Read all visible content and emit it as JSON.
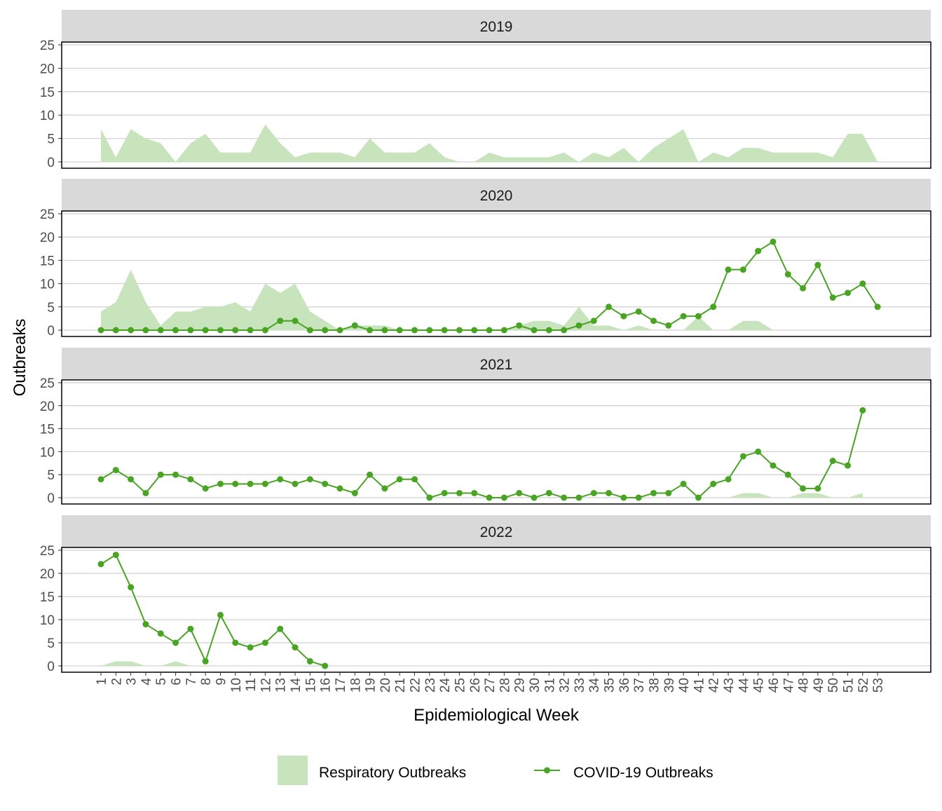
{
  "chart_data": {
    "type": "area",
    "xlabel": "Epidemiological Week",
    "ylabel": "Outbreaks",
    "ylim": [
      0,
      25
    ],
    "yticks": [
      0,
      5,
      10,
      15,
      20,
      25
    ],
    "x": [
      1,
      2,
      3,
      4,
      5,
      6,
      7,
      8,
      9,
      10,
      11,
      12,
      13,
      14,
      15,
      16,
      17,
      18,
      19,
      20,
      21,
      22,
      23,
      24,
      25,
      26,
      27,
      28,
      29,
      30,
      31,
      32,
      33,
      34,
      35,
      36,
      37,
      38,
      39,
      40,
      41,
      42,
      43,
      44,
      45,
      46,
      47,
      48,
      49,
      50,
      51,
      52,
      53
    ],
    "grid": "horizontal",
    "legend_position": "bottom",
    "colors": {
      "respiratory_fill": "#c7e4bd",
      "covid_line": "#4aa424",
      "strip_bg": "#d9d9d9",
      "grid": "#d2d2d2"
    },
    "series_names": {
      "respiratory": "Respiratory Outbreaks",
      "covid": "COVID-19 Outbreaks"
    },
    "panels": [
      {
        "label": "2019",
        "respiratory": [
          7,
          1,
          7,
          5,
          4,
          0,
          4,
          6,
          2,
          2,
          2,
          8,
          4,
          1,
          2,
          2,
          2,
          1,
          5,
          2,
          2,
          2,
          4,
          1,
          0,
          0,
          2,
          1,
          1,
          1,
          1,
          2,
          0,
          2,
          1,
          3,
          0,
          3,
          5,
          7,
          0,
          2,
          1,
          3,
          3,
          2,
          2,
          2,
          2,
          1,
          6,
          6,
          0
        ],
        "covid": []
      },
      {
        "label": "2020",
        "respiratory": [
          4,
          6,
          13,
          6,
          1,
          4,
          4,
          5,
          5,
          6,
          4,
          10,
          8,
          10,
          4,
          2,
          0,
          1,
          1,
          1,
          0,
          0,
          0,
          0,
          0,
          0,
          0,
          0,
          1,
          2,
          2,
          1,
          5,
          1,
          1,
          0,
          1,
          0,
          0,
          0,
          3,
          0,
          0,
          2,
          2,
          0,
          0,
          0,
          0,
          0,
          0,
          0,
          0
        ],
        "covid": [
          0,
          0,
          0,
          0,
          0,
          0,
          0,
          0,
          0,
          0,
          0,
          0,
          2,
          2,
          0,
          0,
          0,
          1,
          0,
          0,
          0,
          0,
          0,
          0,
          0,
          0,
          0,
          0,
          1,
          0,
          0,
          0,
          1,
          2,
          5,
          3,
          4,
          2,
          1,
          3,
          3,
          5,
          13,
          13,
          17,
          19,
          12,
          9,
          14,
          7,
          8,
          10,
          5
        ]
      },
      {
        "label": "2021",
        "respiratory": [
          0,
          0,
          0,
          0,
          0,
          0,
          0,
          0,
          0,
          0,
          0,
          0,
          0,
          0,
          0,
          0,
          0,
          0,
          0,
          0,
          0,
          0,
          0,
          0,
          0,
          0,
          0,
          0,
          0,
          0,
          0,
          0,
          0,
          0,
          0,
          0,
          0,
          0,
          0,
          0,
          0,
          0,
          0,
          1,
          1,
          0,
          0,
          1,
          1,
          0,
          0,
          1
        ],
        "covid": [
          4,
          6,
          4,
          1,
          5,
          5,
          4,
          2,
          3,
          3,
          3,
          3,
          4,
          3,
          4,
          3,
          2,
          1,
          5,
          2,
          4,
          4,
          0,
          1,
          1,
          1,
          0,
          0,
          1,
          0,
          1,
          0,
          0,
          1,
          1,
          0,
          0,
          1,
          1,
          3,
          0,
          3,
          4,
          9,
          10,
          7,
          5,
          2,
          2,
          8,
          7,
          19
        ]
      },
      {
        "label": "2022",
        "respiratory": [
          0,
          1,
          1,
          0,
          0,
          1,
          0,
          0,
          0,
          0,
          0,
          0,
          0,
          0,
          0,
          0
        ],
        "covid": [
          22,
          24,
          17,
          9,
          7,
          5,
          8,
          1,
          11,
          5,
          4,
          5,
          8,
          4,
          1,
          0
        ]
      }
    ]
  }
}
